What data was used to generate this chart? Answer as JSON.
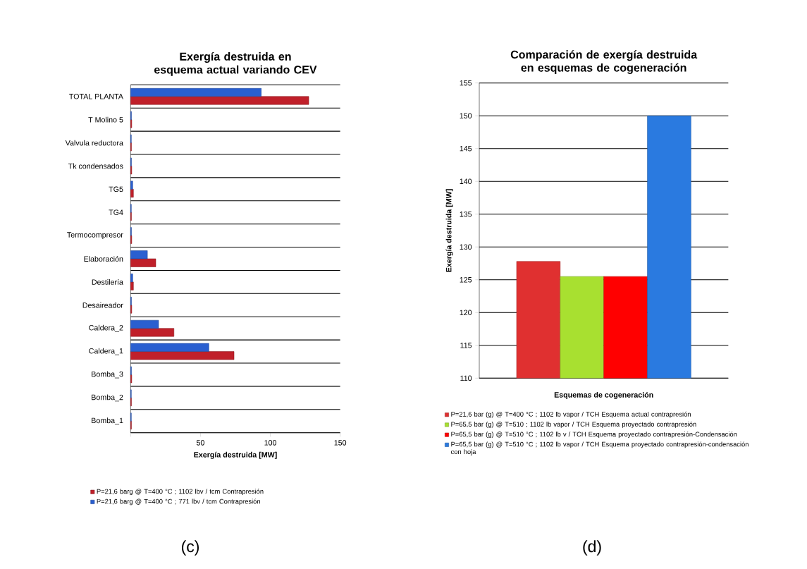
{
  "chart_data": [
    {
      "type": "bar",
      "orientation": "horizontal",
      "title": "Exergía destruida en esquema actual variando CEV",
      "xlabel": "Exergía destruida [MW]",
      "categories": [
        "TOTAL PLANTA",
        "T Molino 5",
        "Valvula reductora",
        "Tk condensados",
        "TG5",
        "TG4",
        "Termocompresor",
        "Elaboración",
        "Destilería",
        "Desaireador",
        "Caldera_2",
        "Caldera_1",
        "Bomba_3",
        "Bomba_2",
        "Bomba_1"
      ],
      "series": [
        {
          "name": "P=21,6 barg @ T=400 °C ; 1102 lbv / tcm Contrapresión",
          "color": "#c0202a",
          "values": [
            127.5,
            0.8,
            0.6,
            0.8,
            2,
            0.6,
            0.8,
            18,
            2,
            0.8,
            31,
            74,
            0.8,
            0.6,
            0.6
          ]
        },
        {
          "name": "P=21,6 barg @ T=400 °C ; 771 lbv / tcm Contrapresión",
          "color": "#2a5fd0",
          "values": [
            93.5,
            0.6,
            0.5,
            0.6,
            1.5,
            0.5,
            0.6,
            12,
            1.5,
            0.6,
            20,
            56,
            0.6,
            0.5,
            0.5
          ]
        }
      ],
      "xlim": [
        0,
        150
      ],
      "xticks": [
        {
          "value": 0,
          "label": null
        },
        50,
        100,
        150
      ],
      "grid": "y",
      "legend": "bottom",
      "annotations": [
        "(c)"
      ]
    },
    {
      "type": "bar",
      "title": "Comparación de exergía destruida en esquemas de cogeneración",
      "xlabel": "Esquemas de cogeneración",
      "ylabel": "Exergía destruida [MW]",
      "categories": [
        null
      ],
      "series": [
        {
          "name": "P=21,6 bar (g) @ T=400 °C ; 1102 lb vapor / TCH Esquema actual contrapresión",
          "color": "#e03030",
          "values": [
            127.8
          ]
        },
        {
          "name": "P=65,5 bar (g) @ T=510 ; 1102 lb vapor / TCH Esquema proyectado contrapresión",
          "color": "#a8e030",
          "values": [
            125.5
          ]
        },
        {
          "name": "P=65,5 bar (g) @ T=510 °C ; 1102 lb v / TCH Esquema proyectado contrapresión-Condensación",
          "color": "#ff0000",
          "values": [
            125.5
          ]
        },
        {
          "name": "P=65,5 bar (g) @ T=510 °C ; 1102 lb vapor / TCH Esquema proyectado contrapresión-condensación con hoja",
          "color": "#2a7ae0",
          "values": [
            150
          ]
        }
      ],
      "ylim": [
        110,
        155
      ],
      "yticks": [
        110,
        115,
        120,
        125,
        130,
        135,
        140,
        145,
        150,
        155
      ],
      "grid": "y",
      "legend": "bottom",
      "annotations": [
        "(d)"
      ]
    }
  ]
}
